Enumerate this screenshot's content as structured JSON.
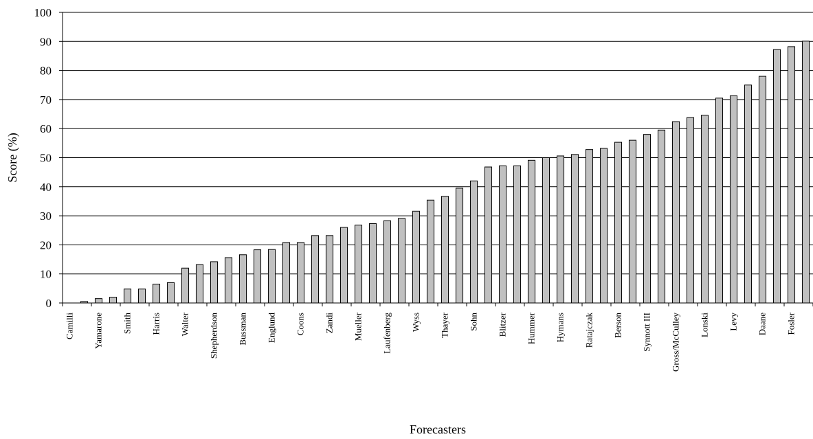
{
  "chart_data": {
    "type": "bar",
    "title": "",
    "xlabel": "Forecasters",
    "ylabel": "Score (%)",
    "ylim": [
      0,
      100
    ],
    "yticks": [
      0,
      10,
      20,
      30,
      40,
      50,
      60,
      70,
      80,
      90,
      100
    ],
    "grid": true,
    "bar_color": "#c0c0c0",
    "labeled_every": 2,
    "categories": [
      "Camilli",
      "",
      "Yamarone",
      "",
      "Smith",
      "",
      "Harris",
      "",
      "Walter",
      "",
      "Shepherdson",
      "",
      "Bussman",
      "",
      "Englund",
      "",
      "Coons",
      "",
      "Zandi",
      "",
      "Mueller",
      "",
      "Laufenberg",
      "",
      "Wyss",
      "",
      "Thayer",
      "",
      "Sohn",
      "",
      "Blitzer",
      "",
      "Hummer",
      "",
      "Hymans",
      "",
      "Ratajczak",
      "",
      "Berson",
      "",
      "Synnott III",
      "",
      "Gross/McCulley",
      "",
      "Lonski",
      "",
      "Levy",
      "",
      "Daane",
      "",
      "Fosler",
      ""
    ],
    "values": [
      0,
      0.5,
      1.5,
      2,
      4.8,
      4.8,
      6.5,
      7,
      12,
      13.2,
      14.2,
      15.6,
      16.6,
      18.3,
      18.4,
      20.8,
      20.8,
      23.2,
      23.2,
      26,
      26.8,
      27.3,
      28.3,
      29.1,
      31.6,
      35.4,
      36.7,
      39.5,
      42,
      46.8,
      47.2,
      47.2,
      49.1,
      50,
      50.6,
      51.1,
      52.8,
      53.2,
      55.3,
      56,
      58,
      59.5,
      62.4,
      63.8,
      64.6,
      70.5,
      71.3,
      75,
      78,
      87.2,
      88.2,
      90.1
    ]
  }
}
